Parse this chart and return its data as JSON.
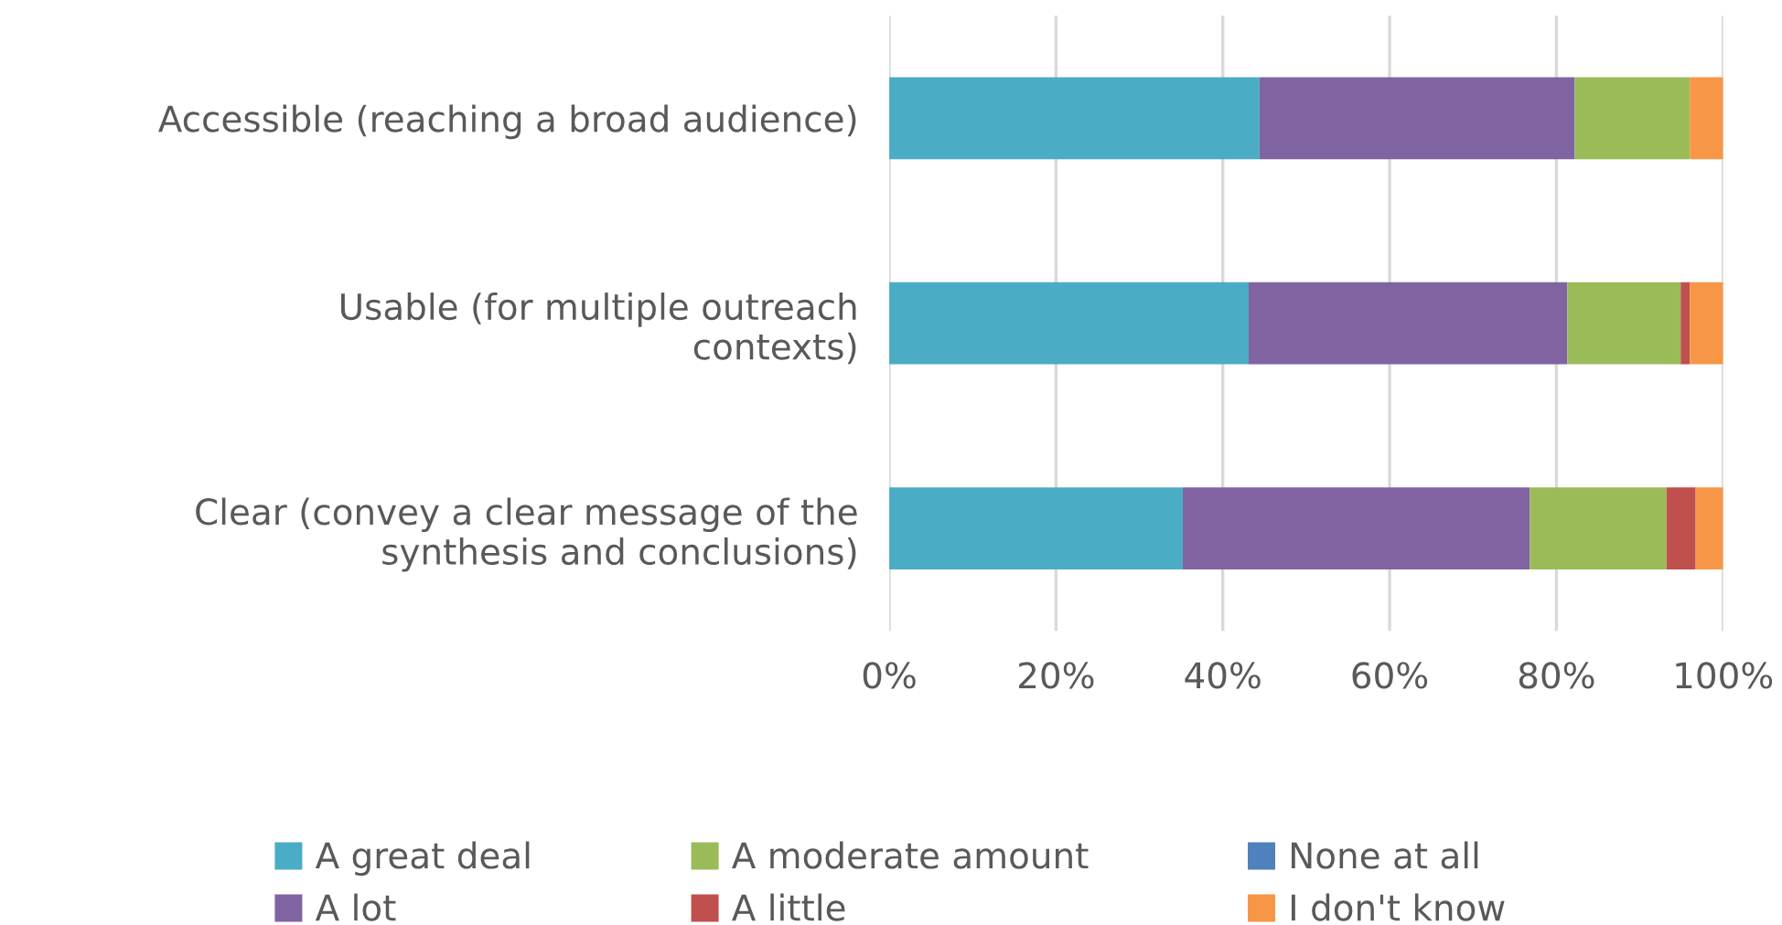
{
  "chart_data": {
    "type": "bar",
    "orientation": "horizontal",
    "stacked": true,
    "categories": [
      "Accessible (reaching a broad audience)",
      "Usable (for multiple outreach contexts)",
      "Clear (convey a clear message of the synthesis and conclusions)"
    ],
    "series": [
      {
        "name": "A great deal",
        "color": "#4bacc6",
        "values": [
          44.4,
          43.1,
          35.2
        ]
      },
      {
        "name": "A lot",
        "color": "#8064a2",
        "values": [
          37.8,
          38.2,
          41.6
        ]
      },
      {
        "name": "A moderate amount",
        "color": "#9bbb59",
        "values": [
          13.8,
          13.6,
          16.4
        ]
      },
      {
        "name": "A little",
        "color": "#c0504d",
        "values": [
          0,
          1.1,
          3.5
        ]
      },
      {
        "name": "None at all",
        "color": "#4f81bd",
        "values": [
          0,
          0,
          0
        ]
      },
      {
        "name": "I don't know",
        "color": "#f79646",
        "values": [
          4.0,
          4.0,
          3.3
        ]
      }
    ],
    "xlim": [
      0,
      100
    ],
    "xticks": [
      {
        "value": 0,
        "label": "0%"
      },
      {
        "value": 20,
        "label": "20%"
      },
      {
        "value": 40,
        "label": "40%"
      },
      {
        "value": 60,
        "label": "60%"
      },
      {
        "value": 80,
        "label": "80%"
      },
      {
        "value": 100,
        "label": "100%"
      }
    ],
    "grid": "x",
    "legend": "bottom"
  }
}
